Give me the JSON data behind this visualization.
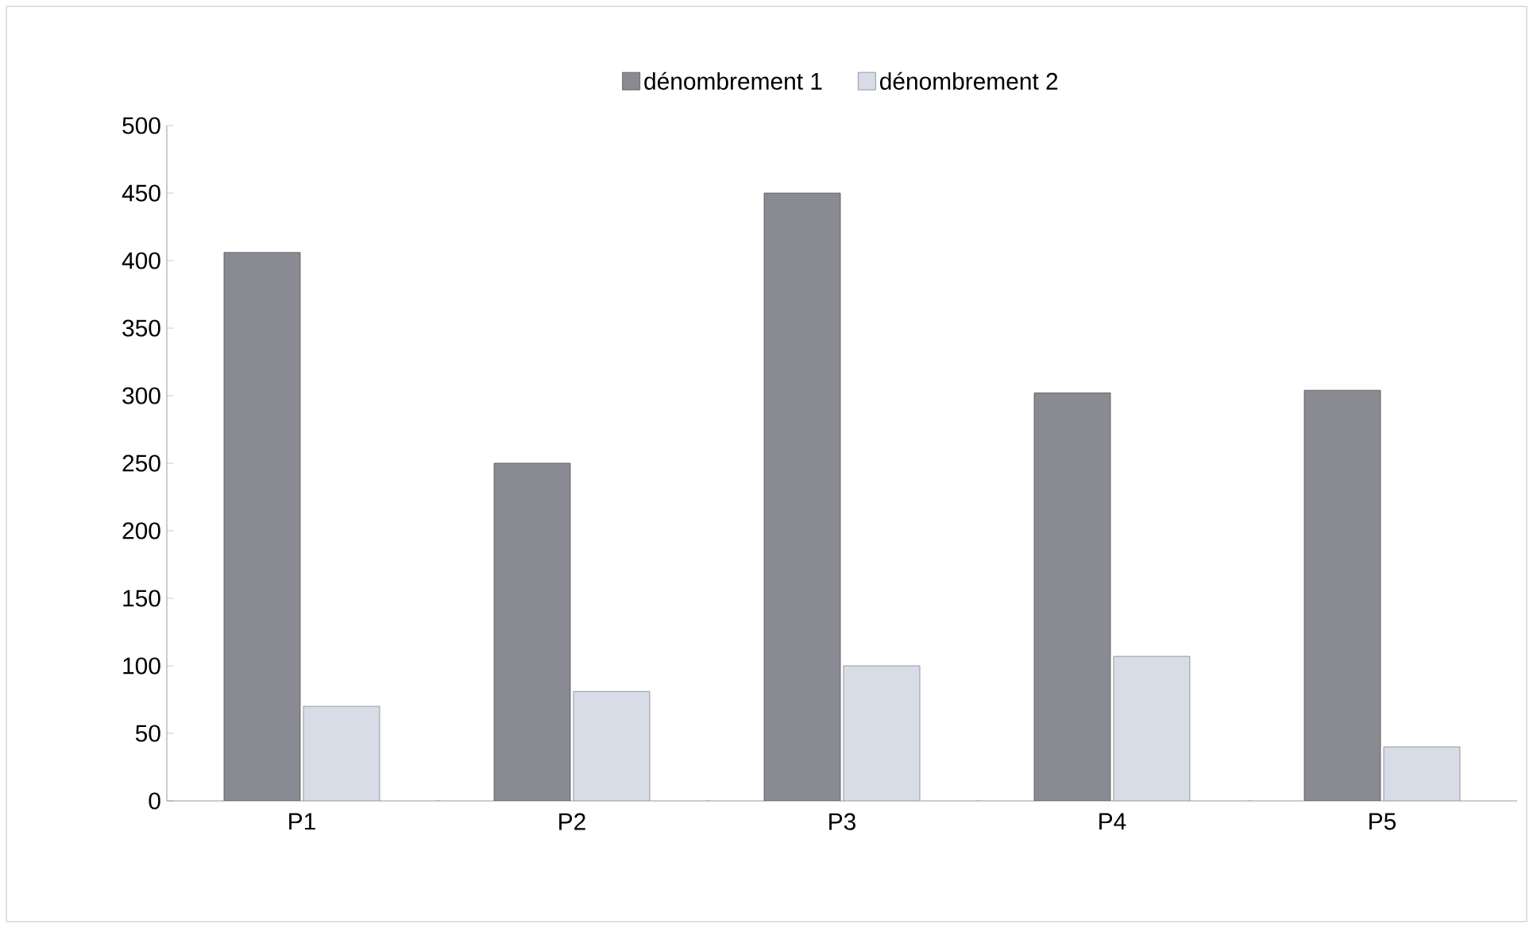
{
  "chart_data": {
    "type": "bar",
    "categories": [
      "P1",
      "P2",
      "P3",
      "P4",
      "P5"
    ],
    "series": [
      {
        "name": "dénombrement 1",
        "color": "#8a8a92",
        "values": [
          406,
          250,
          450,
          302,
          304
        ]
      },
      {
        "name": "dénombrement 2",
        "color": "#d8dce6",
        "values": [
          70,
          81,
          100,
          107,
          40
        ]
      }
    ],
    "ylim": [
      0,
      500
    ],
    "yticks": [
      0,
      50,
      100,
      150,
      200,
      250,
      300,
      350,
      400,
      450,
      500
    ],
    "legend": "top",
    "grid": false
  }
}
